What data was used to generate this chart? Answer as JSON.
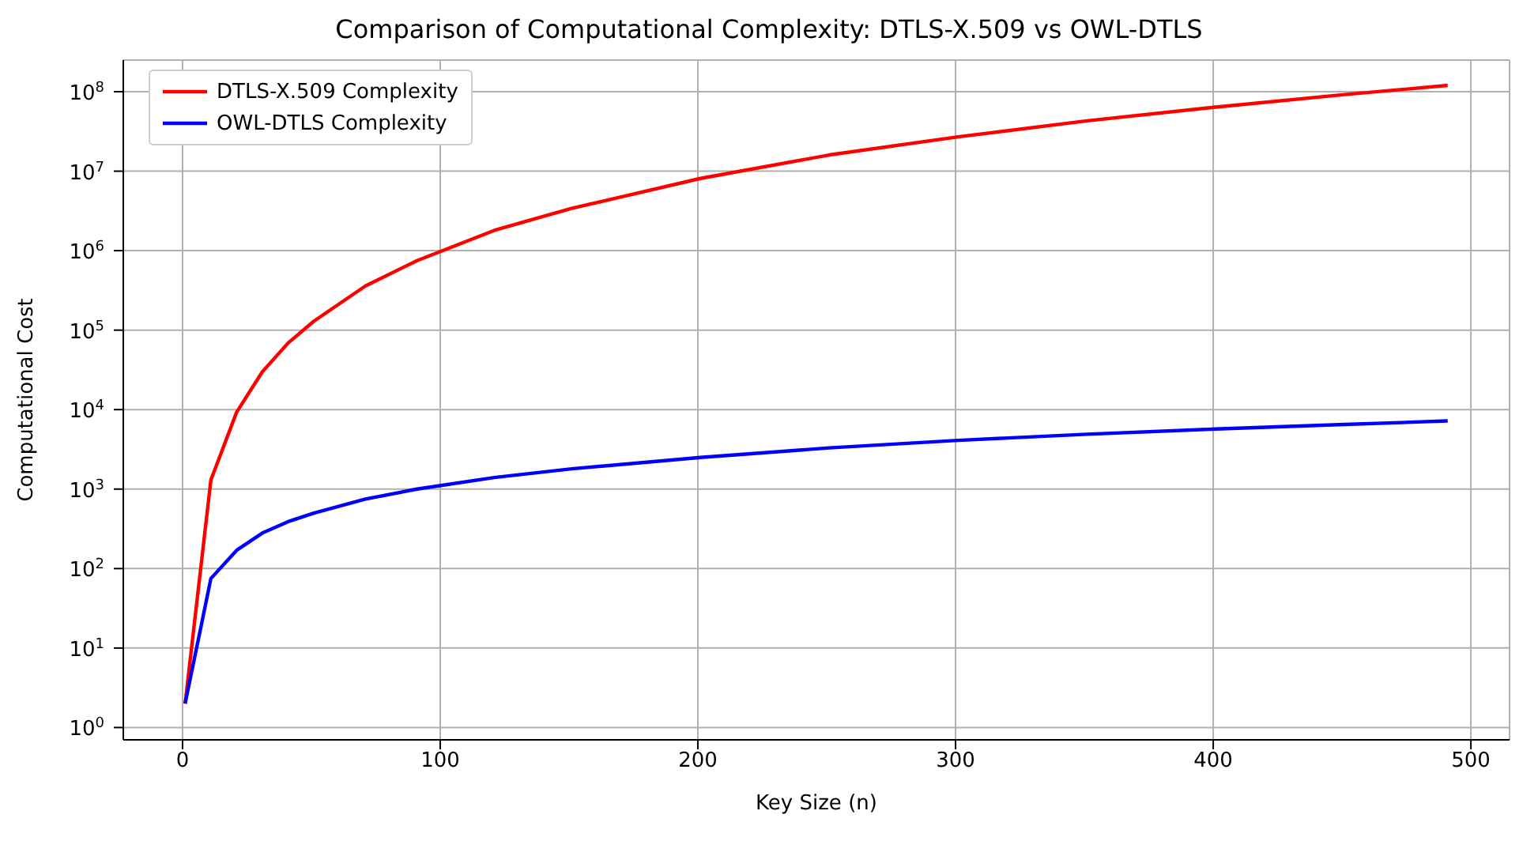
{
  "chart_data": {
    "type": "line",
    "title": "Comparison of Computational Complexity: DTLS-X.509 vs OWL-DTLS",
    "xlabel": "Key Size (n)",
    "ylabel": "Computational Cost",
    "x": [
      1,
      11,
      21,
      31,
      41,
      51,
      71,
      91,
      121,
      151,
      201,
      251,
      301,
      351,
      401,
      451,
      491
    ],
    "series": [
      {
        "name": "DTLS-X.509 Complexity",
        "color": "#ff0000",
        "values": [
          2,
          1300,
          9300,
          30000,
          69000,
          130000,
          360000,
          750000,
          1800000,
          3400000,
          8100000,
          16000000,
          27000000,
          43000000,
          64000000,
          92000000,
          120000000
        ]
      },
      {
        "name": "OWL-DTLS Complexity",
        "color": "#0000ff",
        "values": [
          2,
          75,
          170,
          280,
          390,
          500,
          750,
          1000,
          1400,
          1800,
          2500,
          3300,
          4100,
          4900,
          5700,
          6500,
          7200
        ]
      }
    ],
    "log": "y",
    "xlim": [
      -23,
      515
    ],
    "xticks": [
      0,
      100,
      200,
      300,
      400,
      500
    ],
    "ylim": [
      0.7,
      250000000
    ],
    "yticks": [
      {
        "value": 1,
        "label": "10$^{0}$"
      },
      {
        "value": 10,
        "label": "10$^{1}$"
      },
      {
        "value": 100,
        "label": "10$^{2}$"
      },
      {
        "value": 1000,
        "label": "10$^{3}$"
      },
      {
        "value": 10000,
        "label": "10$^{4}$"
      },
      {
        "value": 100000,
        "label": "10$^{5}$"
      },
      {
        "value": 1000000,
        "label": "10$^{6}$"
      },
      {
        "value": 10000000,
        "label": "10$^{7}$"
      },
      {
        "value": 100000000,
        "label": "10$^{8}$"
      }
    ],
    "grid": true,
    "legend": "top left",
    "marker": "none",
    "line_style": "solid"
  }
}
